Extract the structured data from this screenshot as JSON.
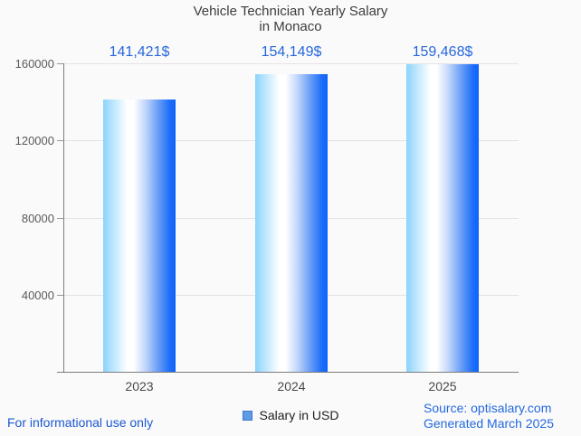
{
  "header": {
    "title_line1": "Vehicle Technician Yearly Salary",
    "title_line2": "in Monaco"
  },
  "chart_data": {
    "type": "bar",
    "title": "Vehicle Technician Yearly Salary in Monaco",
    "categories": [
      "2023",
      "2024",
      "2025"
    ],
    "values": [
      141421,
      154149,
      159468
    ],
    "value_labels": [
      "141,421$",
      "154,149$",
      "159,468$"
    ],
    "series_name": "Salary in USD",
    "xlabel": "",
    "ylabel": "",
    "ylim": [
      0,
      160000
    ],
    "yticks": [
      40000,
      80000,
      120000,
      160000
    ],
    "grid": true,
    "legend_position": "bottom",
    "colors": {
      "value_label_blue": "#2667dc",
      "bar_gradient_left": "#8bd3fc",
      "bar_gradient_mid": "#ffffff",
      "bar_gradient_right": "#0d63fa",
      "legend_swatch_fill": "#5d9be6",
      "legend_swatch_border": "#3f77c9",
      "grid_line": "#e3e3e3",
      "axis_line": "#7c7c7c",
      "background": "#fafafa"
    }
  },
  "legend": {
    "label": "Salary in USD"
  },
  "footer": {
    "disclaimer": "For informational use only",
    "source": "Source: optisalary.com",
    "generated": "Generated March 2025"
  }
}
